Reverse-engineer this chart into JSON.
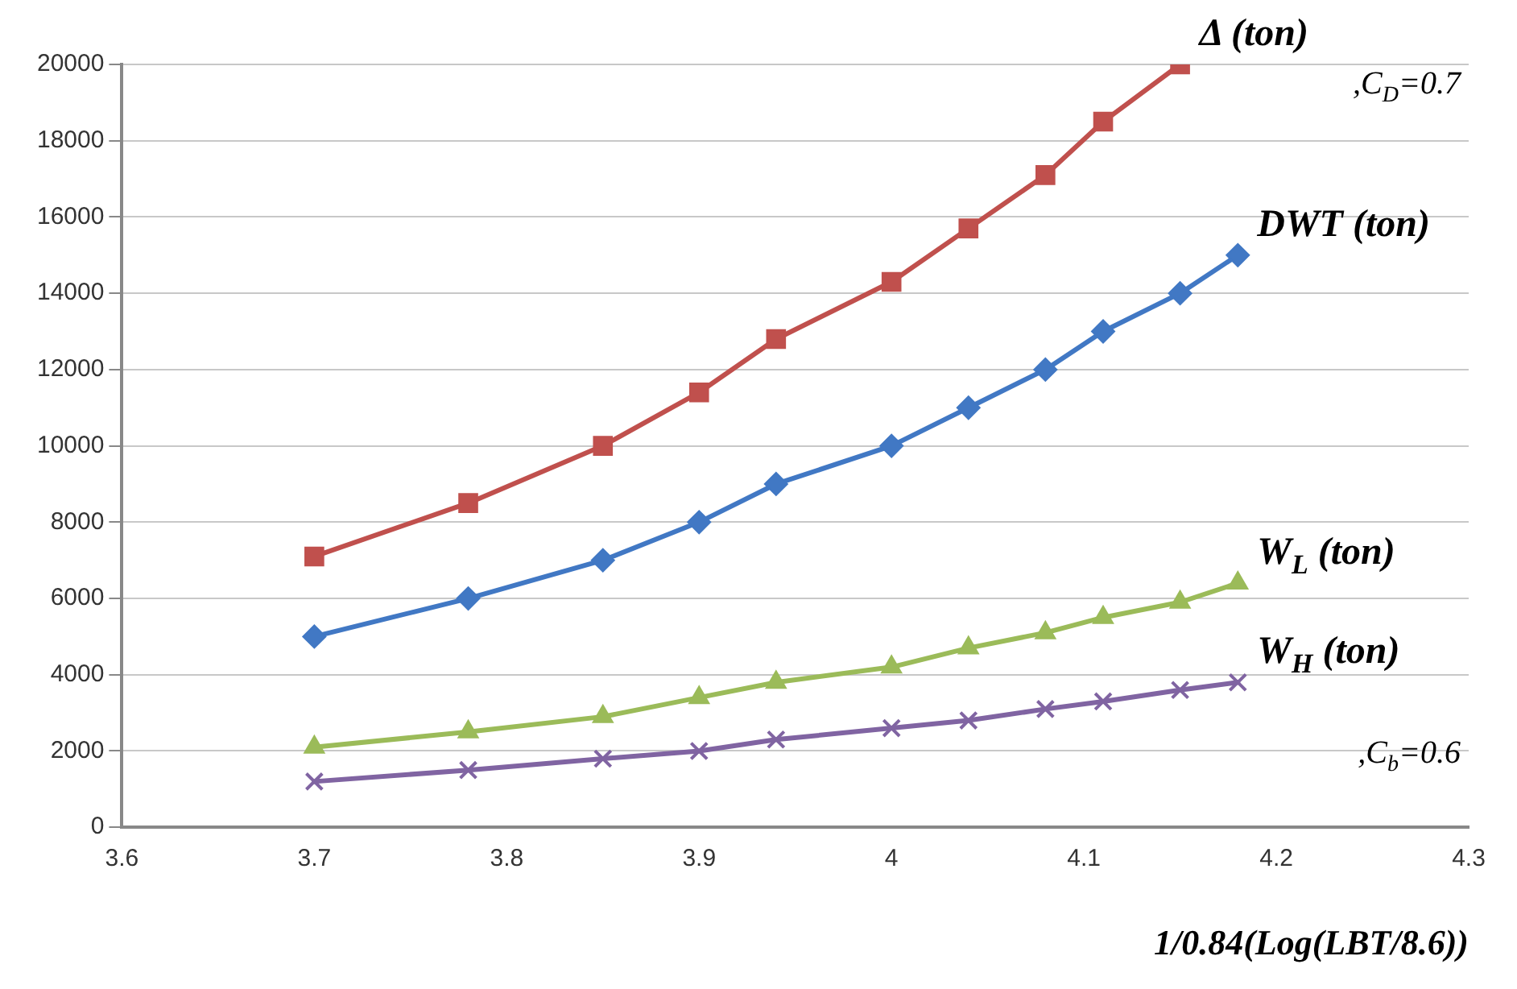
{
  "chart_data": {
    "type": "line",
    "xlabel": "1/0.84(Log(LBT/8.6))",
    "x": [
      3.7,
      3.78,
      3.85,
      3.9,
      3.94,
      4.0,
      4.04,
      4.08,
      4.11,
      4.15,
      4.18
    ],
    "series": [
      {
        "name": "Δ (ton)",
        "color": "#c0504d",
        "marker": "square",
        "values": [
          7100,
          8500,
          10000,
          11400,
          12800,
          14300,
          15700,
          17100,
          18500,
          20000,
          null
        ]
      },
      {
        "name": "DWT (ton)",
        "color": "#4178c4",
        "marker": "diamond",
        "values": [
          5000,
          6000,
          7000,
          8000,
          9000,
          10000,
          11000,
          12000,
          13000,
          14000,
          15000
        ]
      },
      {
        "name": "W$_{L}$ (ton)",
        "color": "#9bbb59",
        "marker": "triangle",
        "values": [
          2100,
          2500,
          2900,
          3400,
          3800,
          4200,
          4700,
          5100,
          5500,
          5900,
          6400
        ]
      },
      {
        "name": "W$_{H}$ (ton)",
        "color": "#8064a2",
        "marker": "cross",
        "values": [
          1200,
          1500,
          1800,
          2000,
          2300,
          2600,
          2800,
          3100,
          3300,
          3600,
          3800
        ]
      }
    ],
    "annotations": [
      ",C$_{D}$=0.7",
      ",C$_{b}$=0.6"
    ],
    "xlim": [
      3.6,
      4.3
    ],
    "xticks": [
      3.6,
      3.7,
      3.8,
      3.9,
      4,
      4.1,
      4.2,
      4.3
    ],
    "ylim": [
      0,
      20000
    ],
    "yticks": [
      0,
      2000,
      4000,
      6000,
      8000,
      10000,
      12000,
      14000,
      16000,
      18000,
      20000
    ],
    "grid": "y",
    "legend": false,
    "line_style": "solid"
  }
}
